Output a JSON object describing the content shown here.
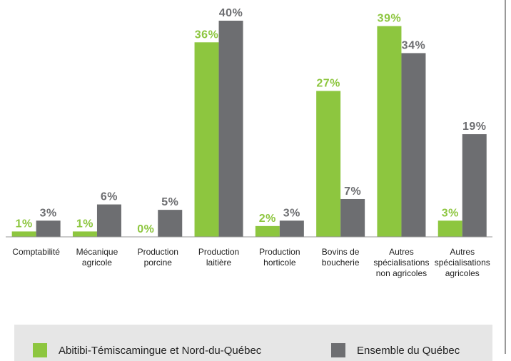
{
  "chart_data": {
    "type": "bar",
    "categories": [
      "Comptabilité",
      "Mécanique\nagricole",
      "Production\nporcine",
      "Production\nlaitière",
      "Production\nhorticole",
      "Bovins de\nboucherie",
      "Autres\nspécialisations\nnon agricoles",
      "Autres\nspécialisations\nagricoles"
    ],
    "series": [
      {
        "name": "Abitibi-Témiscamingue et Nord-du-Québec",
        "color": "#8dc63f",
        "values": [
          1,
          1,
          0,
          36,
          2,
          27,
          39,
          3
        ],
        "value_labels": [
          "1%",
          "1%",
          "0%",
          "36%",
          "2%",
          "27%",
          "39%",
          "3%"
        ]
      },
      {
        "name": "Ensemble du Québec",
        "color": "#6d6e71",
        "values": [
          3,
          6,
          5,
          40,
          3,
          7,
          34,
          19
        ],
        "value_labels": [
          "3%",
          "6%",
          "5%",
          "40%",
          "3%",
          "7%",
          "34%",
          "19%"
        ]
      }
    ],
    "ylim": [
      0,
      40
    ],
    "legend": "bottom"
  }
}
